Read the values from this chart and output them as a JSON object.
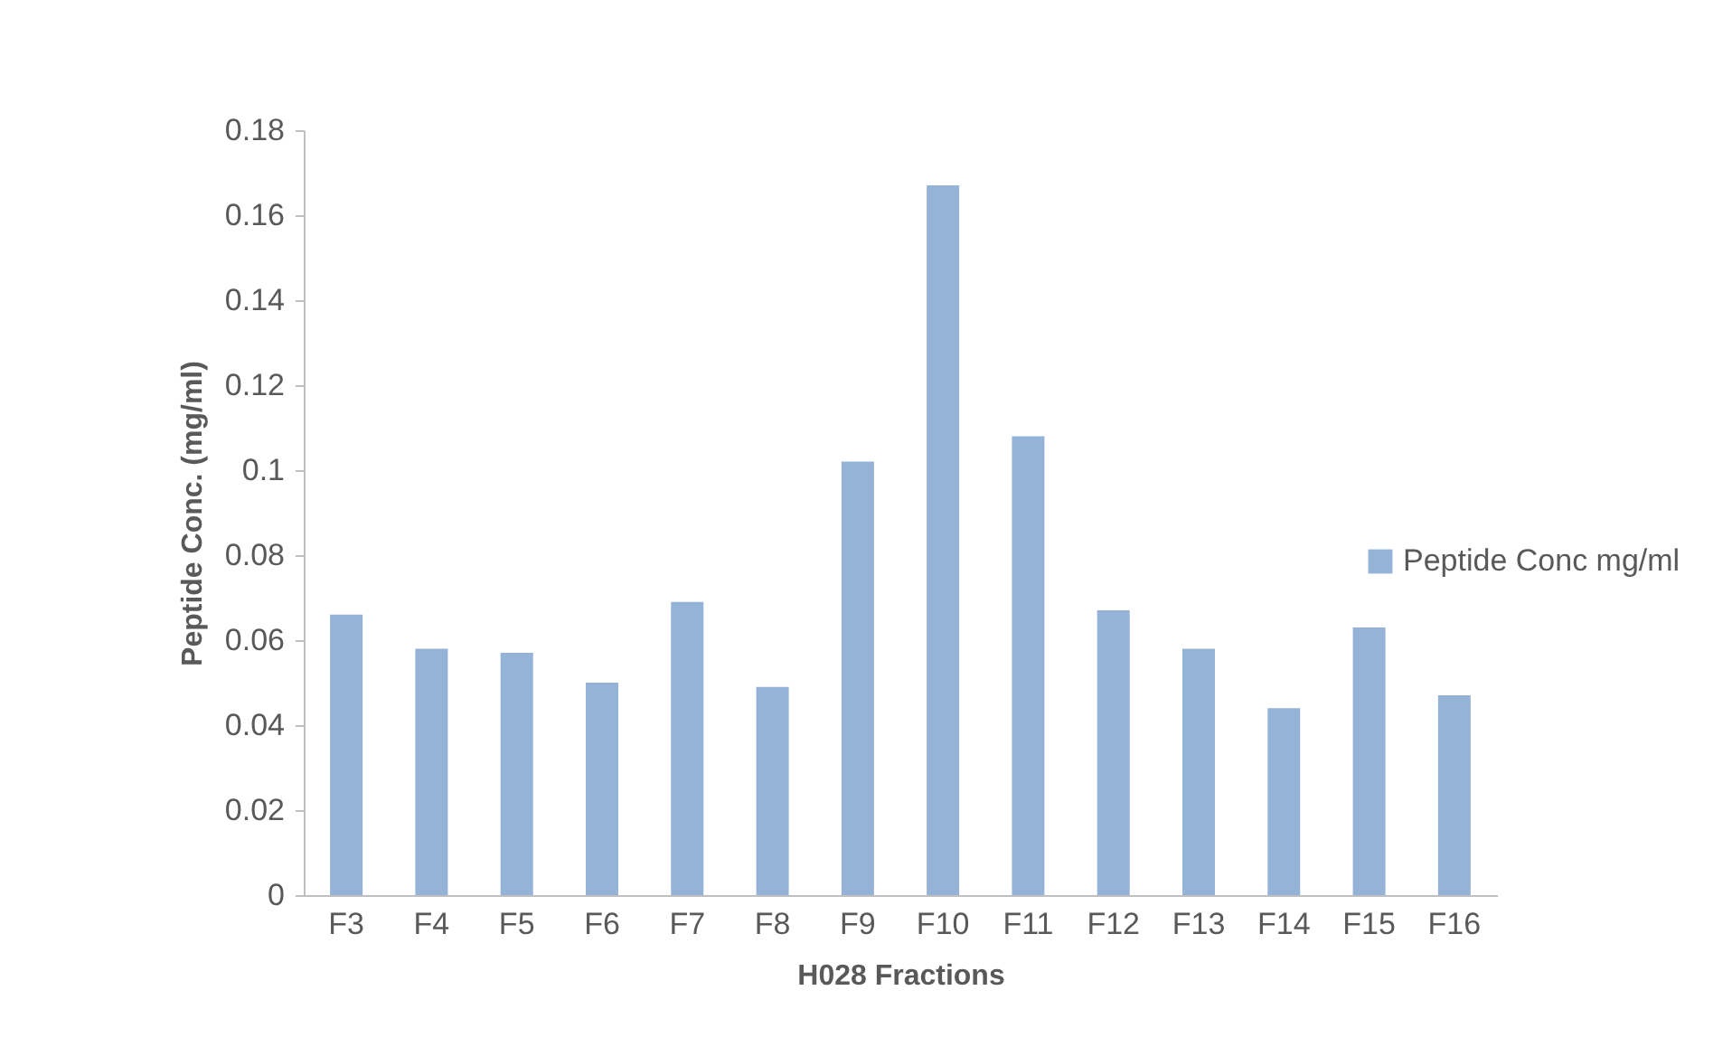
{
  "chart_data": {
    "type": "bar",
    "xlabel": "H028 Fractions",
    "ylabel": "Peptide Conc. (mg/ml)",
    "categories": [
      "F3",
      "F4",
      "F5",
      "F6",
      "F7",
      "F8",
      "F9",
      "F10",
      "F11",
      "F12",
      "F13",
      "F14",
      "F15",
      "F16"
    ],
    "series": [
      {
        "name": "Peptide Conc mg/ml",
        "color": "#95b3d7",
        "values": [
          0.066,
          0.058,
          0.057,
          0.05,
          0.069,
          0.049,
          0.102,
          0.167,
          0.108,
          0.067,
          0.058,
          0.044,
          0.063,
          0.047
        ]
      }
    ],
    "ylim": [
      0,
      0.18
    ],
    "yticks": [
      0,
      0.02,
      0.04,
      0.06,
      0.08,
      0.1,
      0.12,
      0.14,
      0.16,
      0.18
    ],
    "grid": false,
    "legend": "right"
  }
}
